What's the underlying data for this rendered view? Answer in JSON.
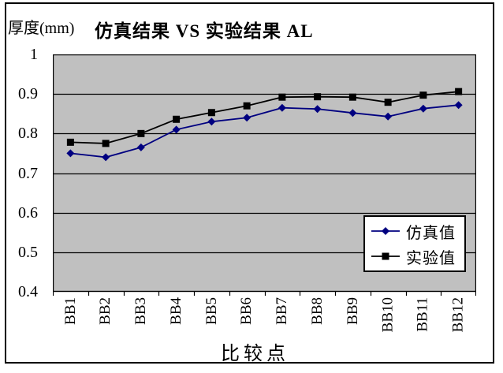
{
  "chart_data": {
    "type": "line",
    "title": "仿真结果 VS 实验结果 AL",
    "y_axis_title": "厚度(mm)",
    "x_axis_title": "比较点",
    "categories": [
      "BB1",
      "BB2",
      "BB3",
      "BB4",
      "BB5",
      "BB6",
      "BB7",
      "BB8",
      "BB9",
      "BB10",
      "BB11",
      "BB12"
    ],
    "series": [
      {
        "name": "仿真值",
        "marker": "diamond",
        "color": "#000080",
        "values": [
          0.75,
          0.74,
          0.765,
          0.81,
          0.83,
          0.84,
          0.865,
          0.862,
          0.852,
          0.843,
          0.863,
          0.872
        ]
      },
      {
        "name": "实验值",
        "marker": "square",
        "color": "#000000",
        "values": [
          0.778,
          0.775,
          0.8,
          0.836,
          0.853,
          0.87,
          0.892,
          0.893,
          0.892,
          0.879,
          0.897,
          0.906
        ]
      }
    ],
    "ylim": [
      0.4,
      1.0
    ],
    "ytick_labels": [
      "1",
      "0.9",
      "0.8",
      "0.7",
      "0.6",
      "0.5",
      "0.4"
    ],
    "ytick_values": [
      1.0,
      0.9,
      0.8,
      0.7,
      0.6,
      0.5,
      0.4
    ],
    "grid": true,
    "legend_position": "inside-right",
    "plot_bg": "#C0C0C0",
    "grid_color": "#000000"
  }
}
